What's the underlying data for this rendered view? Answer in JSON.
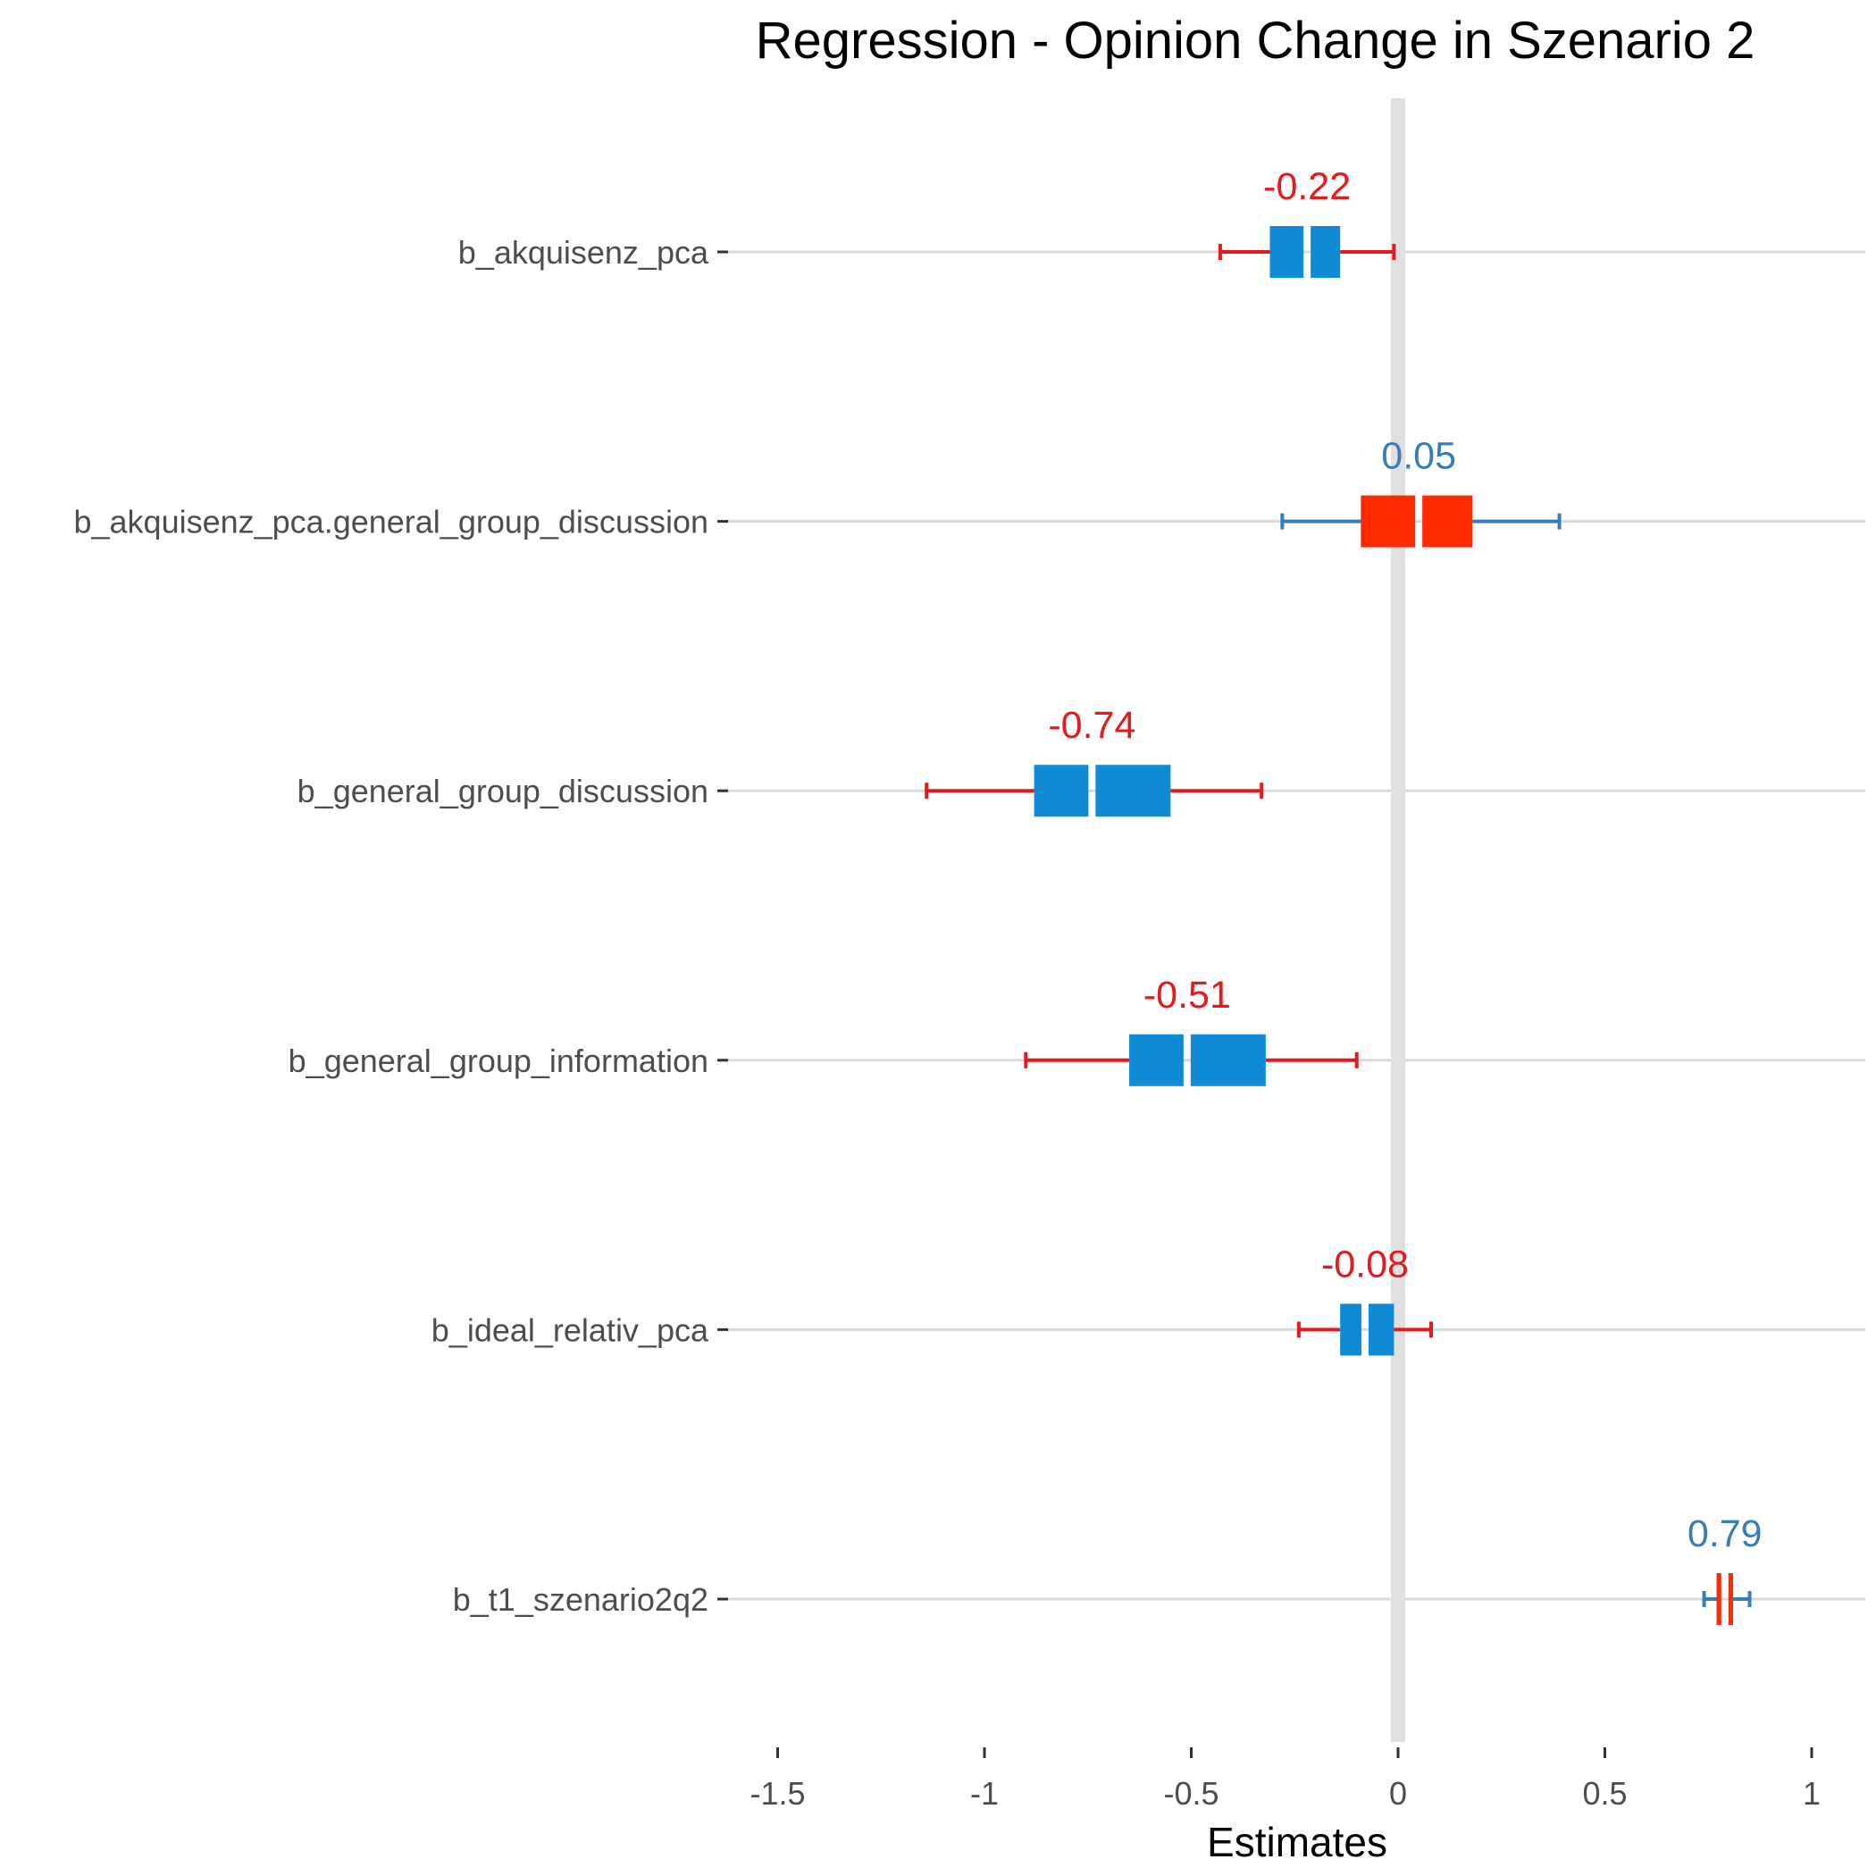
{
  "chart_data": {
    "type": "forest",
    "title": "Regression - Opinion Change in Szenario 2",
    "xlabel": "Estimates",
    "ylabel": "",
    "xlim": [
      -1.62,
      1.12
    ],
    "x_ticks": [
      -1.5,
      -1,
      -0.5,
      0,
      0.5,
      1
    ],
    "x_tick_labels": [
      "-1.5",
      "-1",
      "-0.5",
      "0",
      "0.5",
      "1"
    ],
    "zero_line": 0,
    "grid": "horizontal",
    "terms": [
      {
        "name": "b_akquisenz_pca",
        "estimate": -0.22,
        "label": "-0.22",
        "inner_low": -0.31,
        "inner_high": -0.14,
        "outer_low": -0.43,
        "outer_high": -0.01,
        "sign": "negative"
      },
      {
        "name": "b_akquisenz_pca.general_group_discussion",
        "estimate": 0.05,
        "label": "0.05",
        "inner_low": -0.09,
        "inner_high": 0.18,
        "outer_low": -0.28,
        "outer_high": 0.39,
        "sign": "positive"
      },
      {
        "name": "b_general_group_discussion",
        "estimate": -0.74,
        "label": "-0.74",
        "inner_low": -0.88,
        "inner_high": -0.55,
        "outer_low": -1.14,
        "outer_high": -0.33,
        "sign": "negative"
      },
      {
        "name": "b_general_group_information",
        "estimate": -0.51,
        "label": "-0.51",
        "inner_low": -0.65,
        "inner_high": -0.32,
        "outer_low": -0.9,
        "outer_high": -0.1,
        "sign": "negative"
      },
      {
        "name": "b_ideal_relativ_pca",
        "estimate": -0.08,
        "label": "-0.08",
        "inner_low": -0.14,
        "inner_high": -0.01,
        "outer_low": -0.24,
        "outer_high": 0.08,
        "sign": "negative"
      },
      {
        "name": "b_t1_szenario2q2",
        "estimate": 0.79,
        "label": "0.79",
        "inner_low": 0.77,
        "inner_high": 0.81,
        "outer_low": 0.74,
        "outer_high": 0.85,
        "sign": "positive"
      }
    ],
    "colors": {
      "negative_label": "#e41a1c",
      "negative_whisker": "#e41a1c",
      "negative_box": "#0f8bd6",
      "positive_label": "#377eb8",
      "positive_whisker": "#377eb8",
      "positive_box": "#ff2a00",
      "grid": "#d9d9d9",
      "zero_line": "#e0e0e0",
      "axis_text": "#4d4d4d"
    }
  }
}
